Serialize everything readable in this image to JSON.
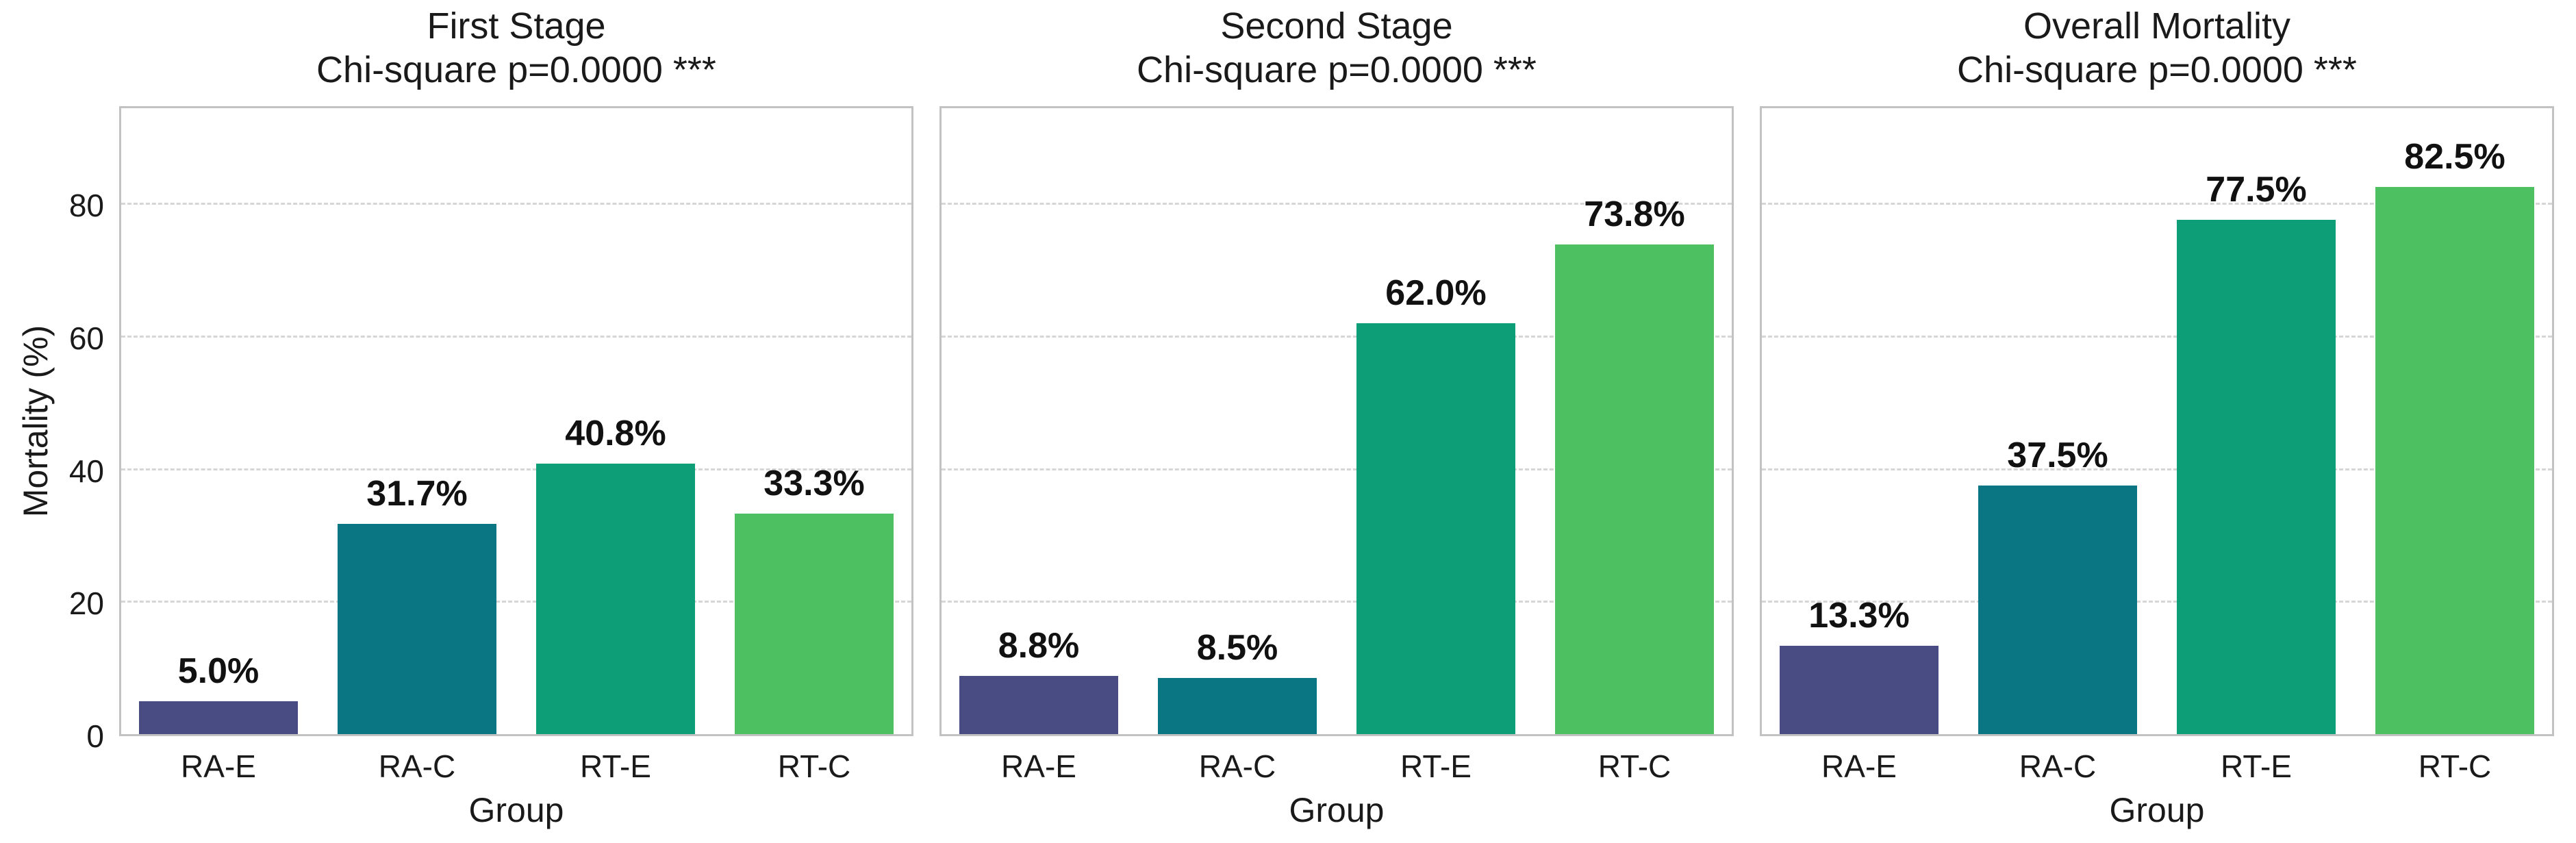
{
  "figure": {
    "background": "#ffffff",
    "grid_color": "#d6d6d6",
    "spine_color": "#c2c2c2",
    "text_color": "#1a1a1a"
  },
  "chart_data": [
    {
      "type": "bar",
      "title": "First Stage",
      "subtitle": "Chi-square p=0.0000 ***",
      "xlabel": "Group",
      "ylabel": "Mortality (%)",
      "categories": [
        "RA-E",
        "RA-C",
        "RT-E",
        "RT-C"
      ],
      "values": [
        5.0,
        31.7,
        40.8,
        33.3
      ],
      "bar_labels": [
        "5.0%",
        "31.7%",
        "40.8%",
        "33.3%"
      ],
      "yticks": [
        0,
        20,
        40,
        60,
        80
      ],
      "ylim": [
        0,
        95
      ],
      "grid": "horizontal-dashed",
      "legend": "none",
      "bar_colors": [
        "#484c82",
        "#0a7583",
        "#0d9e78",
        "#4dc162"
      ]
    },
    {
      "type": "bar",
      "title": "Second Stage",
      "subtitle": "Chi-square p=0.0000 ***",
      "xlabel": "Group",
      "ylabel": "",
      "categories": [
        "RA-E",
        "RA-C",
        "RT-E",
        "RT-C"
      ],
      "values": [
        8.8,
        8.5,
        62.0,
        73.8
      ],
      "bar_labels": [
        "8.8%",
        "8.5%",
        "62.0%",
        "73.8%"
      ],
      "yticks": [
        0,
        20,
        40,
        60,
        80
      ],
      "ylim": [
        0,
        95
      ],
      "grid": "horizontal-dashed",
      "legend": "none",
      "bar_colors": [
        "#484c82",
        "#0a7583",
        "#0d9e78",
        "#4dc162"
      ]
    },
    {
      "type": "bar",
      "title": "Overall Mortality",
      "subtitle": "Chi-square p=0.0000 ***",
      "xlabel": "Group",
      "ylabel": "",
      "categories": [
        "RA-E",
        "RA-C",
        "RT-E",
        "RT-C"
      ],
      "values": [
        13.3,
        37.5,
        77.5,
        82.5
      ],
      "bar_labels": [
        "13.3%",
        "37.5%",
        "77.5%",
        "82.5%"
      ],
      "yticks": [
        0,
        20,
        40,
        60,
        80
      ],
      "ylim": [
        0,
        95
      ],
      "grid": "horizontal-dashed",
      "legend": "none",
      "bar_colors": [
        "#484c82",
        "#0a7583",
        "#0d9e78",
        "#4dc162"
      ]
    }
  ]
}
